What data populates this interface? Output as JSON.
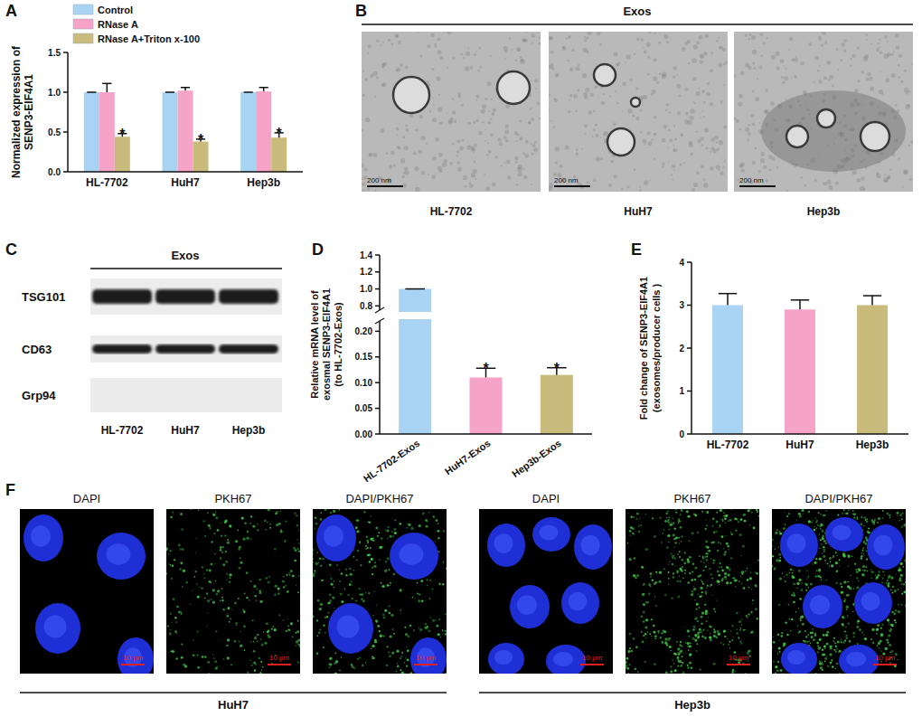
{
  "chart_data": [
    {
      "type": "bar",
      "panel_label": "A",
      "ylabel": [
        "Normalized expression of",
        "SENP3-EIF4A1"
      ],
      "categories": [
        "HL-7702",
        "HuH7",
        "Hep3b"
      ],
      "series": [
        {
          "name": "Control",
          "color": "#a9d3f2",
          "values": [
            1,
            1,
            1
          ],
          "errors": [
            0,
            0,
            0
          ]
        },
        {
          "name": "RNase A",
          "color": "#f5a3c7",
          "values": [
            1.0,
            1.02,
            1.01
          ],
          "errors": [
            0.11,
            0.04,
            0.05
          ]
        },
        {
          "name": "RNase A+Triton x-100",
          "color": "#c8bb7c",
          "values": [
            0.44,
            0.38,
            0.43
          ],
          "errors": [
            0.04,
            0.03,
            0.06
          ],
          "annotations": [
            "*",
            "*",
            "*"
          ]
        }
      ],
      "ylim": [
        0,
        1.5
      ],
      "yticks": [
        {
          "value": 0,
          "label": "0.0"
        },
        {
          "value": 0.5,
          "label": "0.5"
        },
        {
          "value": 1,
          "label": "1.0"
        },
        {
          "value": 1.5,
          "label": "1.5"
        }
      ],
      "legend": "top-left",
      "grid": false
    },
    {
      "type": "bar",
      "panel_label": "D",
      "ylabel": [
        "Relative mRNA level of",
        "exosmal SENP3-EIF4A1",
        "(to HL-7702-Exos)"
      ],
      "categories": [
        "HL-7702-Exos",
        "HuH7-Exos",
        "Hep3b-Exos"
      ],
      "values": [
        1,
        0.11,
        0.115
      ],
      "errors": [
        0,
        0.018,
        0.014
      ],
      "annotations": [
        null,
        "*",
        "*"
      ],
      "colors": [
        "#a9d3f2",
        "#f5a3c7",
        "#c8bb7c"
      ],
      "ylim": [
        0,
        1.4
      ],
      "axis_break": [
        0.22,
        0.75
      ],
      "yticks": [
        {
          "value": 0,
          "label": "0.00"
        },
        {
          "value": 0.05,
          "label": "0.05"
        },
        {
          "value": 0.1,
          "label": "0.10"
        },
        {
          "value": 0.15,
          "label": "0.15"
        },
        {
          "value": 0.2,
          "label": "0.20"
        },
        {
          "value": 0.8,
          "label": "0.8"
        },
        {
          "value": 1,
          "label": "1.0"
        },
        {
          "value": 1.2,
          "label": "1.2"
        },
        {
          "value": 1.4,
          "label": "1.4"
        }
      ],
      "grid": false
    },
    {
      "type": "bar",
      "panel_label": "E",
      "ylabel": [
        "Fold change of SENP3-EIF4A1",
        "(exosomes/producer cells )"
      ],
      "categories": [
        "HL-7702",
        "HuH7",
        "Hep3b"
      ],
      "values": [
        3.0,
        2.9,
        3.0
      ],
      "errors": [
        0.27,
        0.22,
        0.22
      ],
      "colors": [
        "#a9d3f2",
        "#f5a3c7",
        "#c8bb7c"
      ],
      "ylim": [
        0,
        4
      ],
      "yticks": [
        0,
        1,
        2,
        3,
        4
      ],
      "grid": false
    }
  ],
  "figure": {
    "B": {
      "panel_label": "B",
      "header": "Exos",
      "images": [
        {
          "label": "HL-7702",
          "scale_bar": "200 nm"
        },
        {
          "label": "HuH7",
          "scale_bar": "200 nm"
        },
        {
          "label": "Hep3b",
          "scale_bar": "200 nm"
        }
      ]
    },
    "C": {
      "panel_label": "C",
      "header": "Exos",
      "proteins": [
        {
          "name": "TSG101",
          "detected": true
        },
        {
          "name": "CD63",
          "detected": true
        },
        {
          "name": "Grp94",
          "detected": false
        }
      ],
      "lanes": [
        "HL-7702",
        "HuH7",
        "Hep3b"
      ]
    },
    "F": {
      "panel_label": "F",
      "groups": [
        {
          "label": "HuH7",
          "channels": [
            "DAPI",
            "PKH67",
            "DAPI/PKH67"
          ],
          "scale_bar": "10 μm"
        },
        {
          "label": "Hep3b",
          "channels": [
            "DAPI",
            "PKH67",
            "DAPI/PKH67"
          ],
          "scale_bar": "10 μm"
        }
      ]
    }
  }
}
